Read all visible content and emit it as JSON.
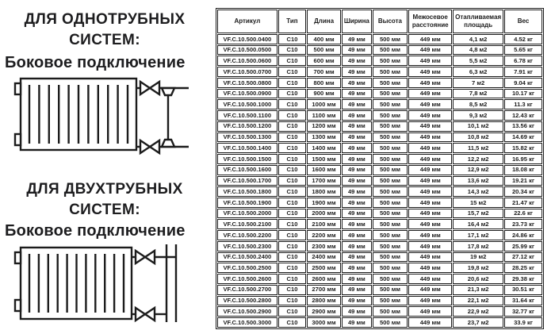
{
  "colors": {
    "ink": "#1c1c1c",
    "background": "#ffffff"
  },
  "left_panel": {
    "sections": [
      {
        "title_line1": "ДЛЯ ОДНОТРУБНЫХ",
        "title_line2": "СИСТЕМ:",
        "subtitle": "Боковое подключение",
        "diagram": "radiator-side-connection-with-bypass"
      },
      {
        "title_line1": "ДЛЯ ДВУХТРУБНЫХ",
        "title_line2": "СИСТЕМ:",
        "subtitle": "Боковое подключение",
        "diagram": "radiator-side-connection-two-risers"
      }
    ]
  },
  "table": {
    "headers": [
      "Артикул",
      "Тип",
      "Длина",
      "Ширина",
      "Высота",
      "Межосевое расстояние",
      "Отапливаемая площадь",
      "Вес"
    ],
    "rows": [
      [
        "VF.C.10.500.0400",
        "C10",
        "400 мм",
        "49 мм",
        "500 мм",
        "449 мм",
        "4,1 м2",
        "4.52 кг"
      ],
      [
        "VF.C.10.500.0500",
        "C10",
        "500 мм",
        "49 мм",
        "500 мм",
        "449 мм",
        "4,8 м2",
        "5.65 кг"
      ],
      [
        "VF.C.10.500.0600",
        "C10",
        "600 мм",
        "49 мм",
        "500 мм",
        "449 мм",
        "5,5 м2",
        "6.78 кг"
      ],
      [
        "VF.C.10.500.0700",
        "C10",
        "700 мм",
        "49 мм",
        "500 мм",
        "449 мм",
        "6,3 м2",
        "7.91 кг"
      ],
      [
        "VF.C.10.500.0800",
        "C10",
        "800 мм",
        "49 мм",
        "500 мм",
        "449 мм",
        "7 м2",
        "9.04 кг"
      ],
      [
        "VF.C.10.500.0900",
        "C10",
        "900 мм",
        "49 мм",
        "500 мм",
        "449 мм",
        "7,8 м2",
        "10.17 кг"
      ],
      [
        "VF.C.10.500.1000",
        "C10",
        "1000 мм",
        "49 мм",
        "500 мм",
        "449 мм",
        "8,5 м2",
        "11.3 кг"
      ],
      [
        "VF.C.10.500.1100",
        "C10",
        "1100 мм",
        "49 мм",
        "500 мм",
        "449 мм",
        "9,3 м2",
        "12.43 кг"
      ],
      [
        "VF.C.10.500.1200",
        "C10",
        "1200 мм",
        "49 мм",
        "500 мм",
        "449 мм",
        "10,1 м2",
        "13.56 кг"
      ],
      [
        "VF.C.10.500.1300",
        "C10",
        "1300 мм",
        "49 мм",
        "500 мм",
        "449 мм",
        "10,8 м2",
        "14.69 кг"
      ],
      [
        "VF.C.10.500.1400",
        "C10",
        "1400 мм",
        "49 мм",
        "500 мм",
        "449 мм",
        "11,5 м2",
        "15.82 кг"
      ],
      [
        "VF.C.10.500.1500",
        "C10",
        "1500 мм",
        "49 мм",
        "500 мм",
        "449 мм",
        "12,2 м2",
        "16.95 кг"
      ],
      [
        "VF.C.10.500.1600",
        "C10",
        "1600 мм",
        "49 мм",
        "500 мм",
        "449 мм",
        "12,9 м2",
        "18.08 кг"
      ],
      [
        "VF.C.10.500.1700",
        "C10",
        "1700 мм",
        "49 мм",
        "500 мм",
        "449 мм",
        "13,6 м2",
        "19.21 кг"
      ],
      [
        "VF.C.10.500.1800",
        "C10",
        "1800 мм",
        "49 мм",
        "500 мм",
        "449 мм",
        "14,3 м2",
        "20.34 кг"
      ],
      [
        "VF.C.10.500.1900",
        "C10",
        "1900 мм",
        "49 мм",
        "500 мм",
        "449 мм",
        "15 м2",
        "21.47 кг"
      ],
      [
        "VF.C.10.500.2000",
        "C10",
        "2000 мм",
        "49 мм",
        "500 мм",
        "449 мм",
        "15,7 м2",
        "22.6 кг"
      ],
      [
        "VF.C.10.500.2100",
        "C10",
        "2100 мм",
        "49 мм",
        "500 мм",
        "449 мм",
        "16,4 м2",
        "23.73 кг"
      ],
      [
        "VF.C.10.500.2200",
        "C10",
        "2200 мм",
        "49 мм",
        "500 мм",
        "449 мм",
        "17,1 м2",
        "24.86 кг"
      ],
      [
        "VF.C.10.500.2300",
        "C10",
        "2300 мм",
        "49 мм",
        "500 мм",
        "449 мм",
        "17,8 м2",
        "25.99 кг"
      ],
      [
        "VF.C.10.500.2400",
        "C10",
        "2400 мм",
        "49 мм",
        "500 мм",
        "449 мм",
        "19 м2",
        "27.12 кг"
      ],
      [
        "VF.C.10.500.2500",
        "C10",
        "2500 мм",
        "49 мм",
        "500 мм",
        "449 мм",
        "19,8 м2",
        "28.25 кг"
      ],
      [
        "VF.C.10.500.2600",
        "C10",
        "2600 мм",
        "49 мм",
        "500 мм",
        "449 мм",
        "20,6 м2",
        "29.38 кг"
      ],
      [
        "VF.C.10.500.2700",
        "C10",
        "2700 мм",
        "49 мм",
        "500 мм",
        "449 мм",
        "21,3 м2",
        "30.51 кг"
      ],
      [
        "VF.C.10.500.2800",
        "C10",
        "2800 мм",
        "49 мм",
        "500 мм",
        "449 мм",
        "22,1 м2",
        "31.64 кг"
      ],
      [
        "VF.C.10.500.2900",
        "C10",
        "2900 мм",
        "49 мм",
        "500 мм",
        "449 мм",
        "22,9 м2",
        "32.77 кг"
      ],
      [
        "VF.C.10.500.3000",
        "C10",
        "3000 мм",
        "49 мм",
        "500 мм",
        "449 мм",
        "23,7 м2",
        "33.9 кг"
      ]
    ]
  }
}
